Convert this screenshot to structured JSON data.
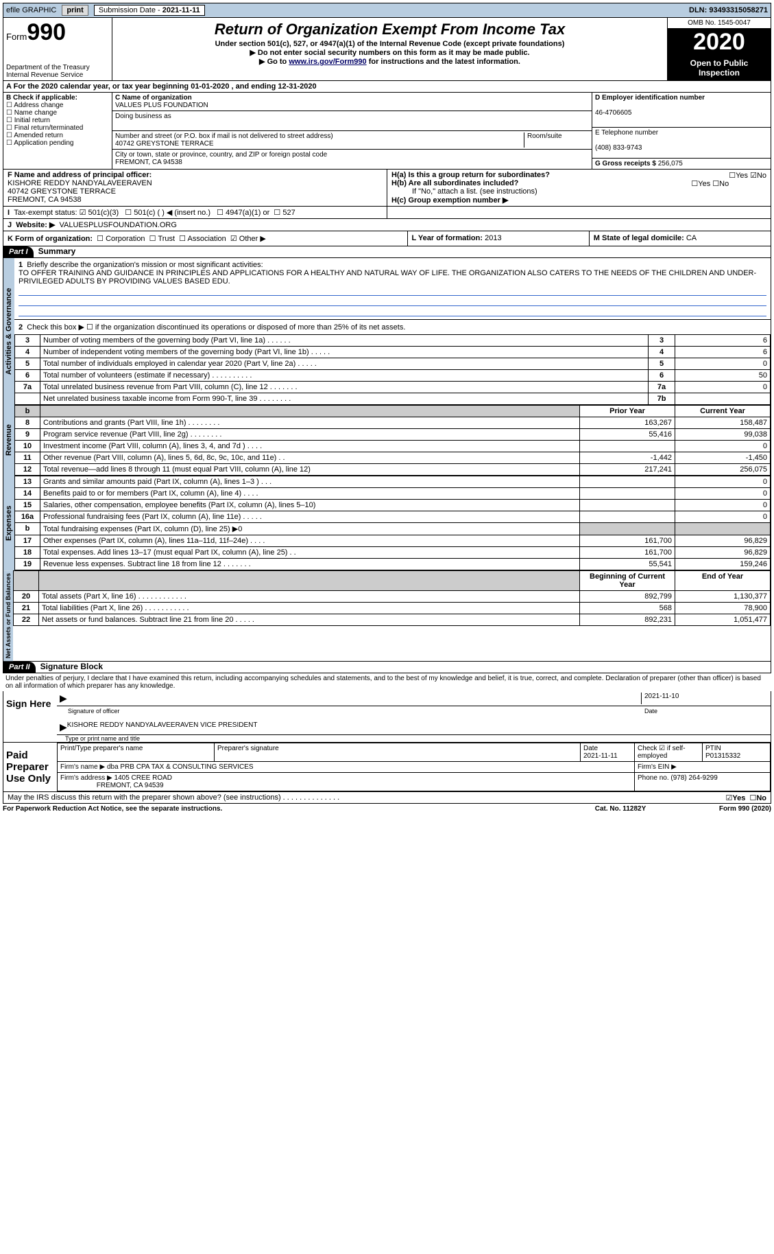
{
  "topbar": {
    "efile": "efile GRAPHIC",
    "print": "print",
    "sub_lbl": "Submission Date - ",
    "sub_date": "2021-11-11",
    "dln_lbl": "DLN: ",
    "dln": "93493315058271"
  },
  "header": {
    "form": "Form",
    "num": "990",
    "dept": "Department of the Treasury\nInternal Revenue Service",
    "title": "Return of Organization Exempt From Income Tax",
    "sub1": "Under section 501(c), 527, or 4947(a)(1) of the Internal Revenue Code (except private foundations)",
    "sub2": "▶ Do not enter social security numbers on this form as it may be made public.",
    "sub3a": "▶ Go to ",
    "sub3link": "www.irs.gov/Form990",
    "sub3b": " for instructions and the latest information.",
    "omb": "OMB No. 1545-0047",
    "year": "2020",
    "open": "Open to Public Inspection"
  },
  "rowA": "For the 2020 calendar year, or tax year beginning 01-01-2020    , and ending 12-31-2020",
  "boxB": {
    "hdr": "B Check if applicable:",
    "o1": "Address change",
    "o2": "Name change",
    "o3": "Initial return",
    "o4": "Final return/terminated",
    "o5": "Amended return",
    "o6": "Application pending"
  },
  "boxC": {
    "name_lbl": "C Name of organization",
    "name": "VALUES PLUS FOUNDATION",
    "dba_lbl": "Doing business as",
    "addr_lbl": "Number and street (or P.O. box if mail is not delivered to street address)",
    "room_lbl": "Room/suite",
    "addr": "40742 GREYSTONE TERRACE",
    "city_lbl": "City or town, state or province, country, and ZIP or foreign postal code",
    "city": "FREMONT, CA  94538"
  },
  "boxD": {
    "ein_lbl": "D Employer identification number",
    "ein": "46-4706605",
    "tel_lbl": "E Telephone number",
    "tel": "(408) 833-9743",
    "gross_lbl": "G Gross receipts $ ",
    "gross": "256,075"
  },
  "boxF": {
    "lbl": "F  Name and address of principal officer:",
    "line1": "KISHORE REDDY NANDYALAVEERAVEN",
    "line2": "40742 GREYSTONE TERRACE",
    "line3": "FREMONT, CA  94538"
  },
  "boxH": {
    "a": "H(a)  Is this a group return for subordinates?",
    "b": "H(b)  Are all subordinates included?",
    "b2": "If \"No,\" attach a list. (see instructions)",
    "c": "H(c)  Group exemption number ▶",
    "yes": "Yes",
    "no": "No"
  },
  "rowI": {
    "lbl": "Tax-exempt status:",
    "o1": "501(c)(3)",
    "o2": "501(c) (   ) ◀ (insert no.)",
    "o3": "4947(a)(1) or",
    "o4": "527"
  },
  "rowJ": {
    "lbl": "Website: ▶",
    "val": "VALUESPLUSFOUNDATION.ORG"
  },
  "rowK": {
    "lbl": "K Form of organization:",
    "o1": "Corporation",
    "o2": "Trust",
    "o3": "Association",
    "o4": "Other ▶",
    "yr_lbl": "L Year of formation: ",
    "yr": "2013",
    "st_lbl": "M State of legal domicile: ",
    "st": "CA"
  },
  "part1": {
    "tab": "Part I",
    "title": "Summary",
    "l1": "Briefly describe the organization's mission or most significant activities:",
    "mission": "TO OFFER TRAINING AND GUIDANCE IN PRINCIPLES AND APPLICATIONS FOR A HEALTHY AND NATURAL WAY OF LIFE. THE ORGANIZATION ALSO CATERS TO THE NEEDS OF THE CHILDREN AND UNDER-PRIVILEGED ADULTS BY PROVIDING VALUES BASED EDU.",
    "l2": "Check this box ▶ ☐  if the organization discontinued its operations or disposed of more than 25% of its net assets.",
    "vlab1": "Activities & Governance",
    "vlab2": "Revenue",
    "vlab3": "Expenses",
    "vlab4": "Net Assets or Fund Balances",
    "col_prior": "Prior Year",
    "col_curr": "Current Year",
    "col_boy": "Beginning of Current Year",
    "col_eoy": "End of Year",
    "rows_gov": [
      {
        "n": "3",
        "t": "Number of voting members of the governing body (Part VI, line 1a)   .    .    .    .    .    .",
        "b": "3",
        "v": "6"
      },
      {
        "n": "4",
        "t": "Number of independent voting members of the governing body (Part VI, line 1b)   .    .    .    .    .",
        "b": "4",
        "v": "6"
      },
      {
        "n": "5",
        "t": "Total number of individuals employed in calendar year 2020 (Part V, line 2a)   .    .    .    .    .",
        "b": "5",
        "v": "0"
      },
      {
        "n": "6",
        "t": "Total number of volunteers (estimate if necessary)   .    .    .    .    .    .    .    .    .    .",
        "b": "6",
        "v": "50"
      },
      {
        "n": "7a",
        "t": "Total unrelated business revenue from Part VIII, column (C), line 12    .    .    .    .    .    .    .",
        "b": "7a",
        "v": "0"
      },
      {
        "n": "",
        "t": "Net unrelated business taxable income from Form 990-T, line 39    .    .    .    .    .    .    .    .",
        "b": "7b",
        "v": ""
      }
    ],
    "rows_rev": [
      {
        "n": "8",
        "t": "Contributions and grants (Part VIII, line 1h)   .    .    .    .    .    .    .    .",
        "p": "163,267",
        "c": "158,487"
      },
      {
        "n": "9",
        "t": "Program service revenue (Part VIII, line 2g)   .    .    .    .    .    .    .    .",
        "p": "55,416",
        "c": "99,038"
      },
      {
        "n": "10",
        "t": "Investment income (Part VIII, column (A), lines 3, 4, and 7d )   .    .    .    .",
        "p": "",
        "c": "0"
      },
      {
        "n": "11",
        "t": "Other revenue (Part VIII, column (A), lines 5, 6d, 8c, 9c, 10c, and 11e)   .    .",
        "p": "-1,442",
        "c": "-1,450"
      },
      {
        "n": "12",
        "t": "Total revenue—add lines 8 through 11 (must equal Part VIII, column (A), line 12)",
        "p": "217,241",
        "c": "256,075"
      }
    ],
    "rows_exp": [
      {
        "n": "13",
        "t": "Grants and similar amounts paid (Part IX, column (A), lines 1–3 )   .    .    .",
        "p": "",
        "c": "0"
      },
      {
        "n": "14",
        "t": "Benefits paid to or for members (Part IX, column (A), line 4)   .    .    .    .",
        "p": "",
        "c": "0"
      },
      {
        "n": "15",
        "t": "Salaries, other compensation, employee benefits (Part IX, column (A), lines 5–10)",
        "p": "",
        "c": "0"
      },
      {
        "n": "16a",
        "t": "Professional fundraising fees (Part IX, column (A), line 11e)   .    .    .    .    .",
        "p": "",
        "c": "0"
      },
      {
        "n": "b",
        "t": "Total fundraising expenses (Part IX, column (D), line 25) ▶0",
        "p": "",
        "c": "",
        "shade": true
      },
      {
        "n": "17",
        "t": "Other expenses (Part IX, column (A), lines 11a–11d, 11f–24e)   .    .    .    .",
        "p": "161,700",
        "c": "96,829"
      },
      {
        "n": "18",
        "t": "Total expenses. Add lines 13–17 (must equal Part IX, column (A), line 25)   .    .",
        "p": "161,700",
        "c": "96,829"
      },
      {
        "n": "19",
        "t": "Revenue less expenses. Subtract line 18 from line 12   .    .    .    .    .    .    .",
        "p": "55,541",
        "c": "159,246"
      }
    ],
    "rows_net": [
      {
        "n": "20",
        "t": "Total assets (Part X, line 16)  .    .    .    .    .    .    .    .    .    .    .    .",
        "p": "892,799",
        "c": "1,130,377"
      },
      {
        "n": "21",
        "t": "Total liabilities (Part X, line 26)  .    .    .    .    .    .    .    .    .    .    .",
        "p": "568",
        "c": "78,900"
      },
      {
        "n": "22",
        "t": "Net assets or fund balances. Subtract line 21 from line 20   .    .    .    .    .",
        "p": "892,231",
        "c": "1,051,477"
      }
    ]
  },
  "part2": {
    "tab": "Part II",
    "title": "Signature Block",
    "pen": "Under penalties of perjury, I declare that I have examined this return, including accompanying schedules and statements, and to the best of my knowledge and belief, it is true, correct, and complete. Declaration of preparer (other than officer) is based on all information of which preparer has any knowledge.",
    "sign_here": "Sign Here",
    "sig_off": "Signature of officer",
    "date": "Date",
    "sig_date": "2021-11-10",
    "name": "KISHORE REDDY NANDYALAVEERAVEN  VICE PRESIDENT",
    "type_name": "Type or print name and title",
    "paid": "Paid Preparer Use Only",
    "prep_name_lbl": "Print/Type preparer's name",
    "prep_sig_lbl": "Preparer's signature",
    "prep_date_lbl": "Date",
    "prep_date": "2021-11-11",
    "check_lbl": "Check ☑  if self-employed",
    "ptin_lbl": "PTIN",
    "ptin": "P01315332",
    "firm_name_lbl": "Firm's name    ▶",
    "firm_name": "dba PRB CPA TAX & CONSULTING SERVICES",
    "firm_ein_lbl": "Firm's EIN ▶",
    "firm_addr_lbl": "Firm's address ▶",
    "firm_addr1": "1405 CREE ROAD",
    "firm_addr2": "FREMONT, CA  94539",
    "firm_phone_lbl": "Phone no. ",
    "firm_phone": "(978) 264-9299",
    "discuss": "May the IRS discuss this return with the preparer shown above? (see instructions)   .    .    .    .    .    .    .    .    .    .    .    .    .    .",
    "yes": "Yes",
    "no": "No"
  },
  "footer": {
    "l": "For Paperwork Reduction Act Notice, see the separate instructions.",
    "m": "Cat. No. 11282Y",
    "r": "Form 990 (2020)"
  }
}
